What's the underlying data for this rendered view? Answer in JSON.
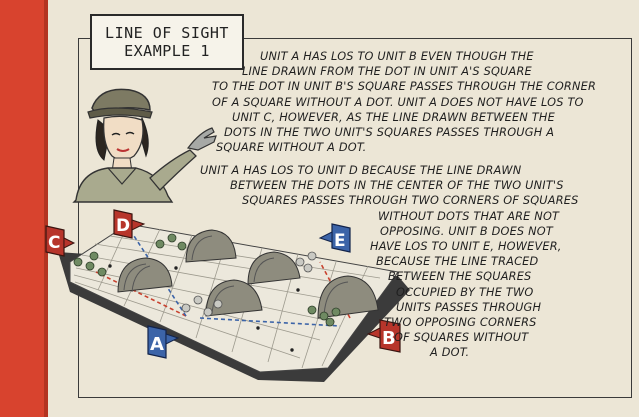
{
  "title": {
    "line1": "LINE OF SIGHT",
    "line2": "EXAMPLE 1"
  },
  "paragraph1": {
    "lines": [
      "UNIT A HAS LOS TO UNIT B EVEN THOUGH THE",
      "LINE DRAWN FROM THE DOT IN UNIT A'S SQUARE",
      "TO THE DOT IN UNIT B'S SQUARE PASSES THROUGH THE CORNER",
      "OF A SQUARE WITHOUT A DOT. UNIT A DOES NOT HAVE LOS TO",
      "UNIT C, HOWEVER, AS THE LINE DRAWN BETWEEN THE",
      "DOTS IN THE TWO UNIT'S SQUARES PASSES THROUGH A",
      "SQUARE WITHOUT A DOT."
    ]
  },
  "paragraph2": {
    "lines": [
      "UNIT A HAS LOS TO UNIT D BECAUSE THE LINE DRAWN",
      "BETWEEN THE DOTS IN THE CENTER OF THE TWO UNIT'S",
      "SQUARES PASSES THROUGH TWO CORNERS OF SQUARES",
      "WITHOUT DOTS THAT ARE NOT",
      "OPPOSING. UNIT B DOES NOT",
      "HAVE LOS TO UNIT E, HOWEVER,",
      "BECAUSE THE LINE TRACED",
      "BETWEEN THE SQUARES",
      "OCCUPIED BY THE TWO",
      "UNITS PASSES THROUGH",
      "TWO OPPOSING CORNERS",
      "OF SQUARES WITHOUT",
      "A DOT."
    ]
  },
  "unit_flags": {
    "a": "A",
    "b": "B",
    "c": "C",
    "d": "D",
    "e": "E"
  },
  "colors": {
    "red_bar": "#d8432e",
    "flag_red": "#b7352b",
    "flag_blue": "#3c64a8",
    "board": "#3b3b3b",
    "tile": "#ece8dc"
  }
}
